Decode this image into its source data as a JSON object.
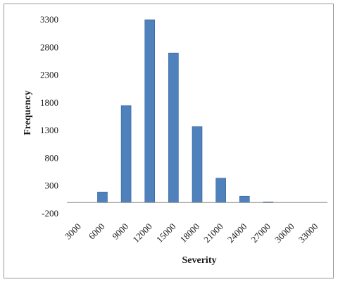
{
  "chart_data": {
    "type": "bar",
    "title": "",
    "xlabel": "Severity",
    "ylabel": "Frequency",
    "categories": [
      "3000",
      "6000",
      "9000",
      "12000",
      "15000",
      "18000",
      "21000",
      "24000",
      "27000",
      "30000",
      "33000"
    ],
    "values": [
      0,
      190,
      1750,
      3300,
      2700,
      1370,
      440,
      115,
      10,
      0,
      0
    ],
    "yticks": [
      "3300",
      "2800",
      "2300",
      "1800",
      "1300",
      "800",
      "300",
      "-200"
    ],
    "ylim": [
      -200,
      3300
    ],
    "bar_color": "#4f81bd",
    "bar_edge_color": "#2e5f96",
    "grid": false,
    "legend": "none"
  }
}
